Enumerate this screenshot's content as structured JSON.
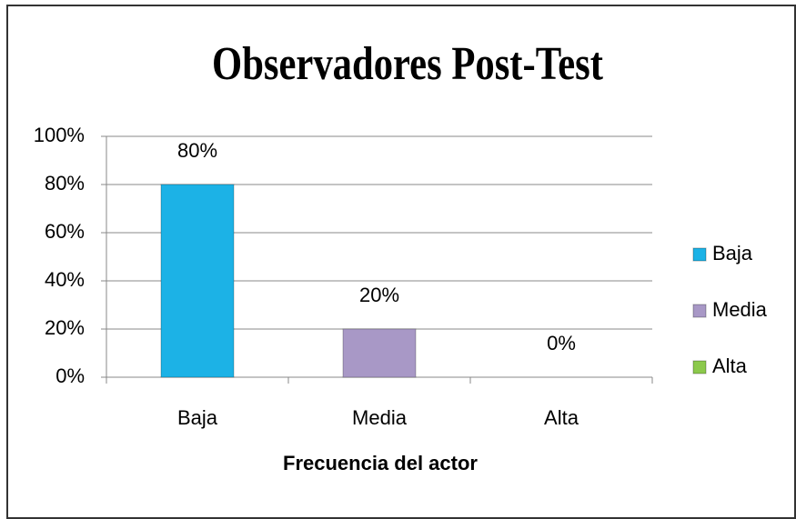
{
  "chart_data": {
    "type": "bar",
    "title": "Observadores Post-Test",
    "x_label": "Frecuencia del actor",
    "categories": [
      "Baja",
      "Media",
      "Alta"
    ],
    "values": [
      80,
      20,
      0
    ],
    "value_labels": [
      "80%",
      "20%",
      "0%"
    ],
    "colors": [
      "#1cb2e6",
      "#a898c6",
      "#8cc94c"
    ],
    "ylim": [
      0,
      100
    ],
    "yticks": [
      {
        "value": 0,
        "label": "0%"
      },
      {
        "value": 20,
        "label": "20%"
      },
      {
        "value": 40,
        "label": "40%"
      },
      {
        "value": 60,
        "label": "60%"
      },
      {
        "value": 80,
        "label": "80%"
      },
      {
        "value": 100,
        "label": "100%"
      }
    ],
    "grid": true,
    "legend": "right"
  }
}
